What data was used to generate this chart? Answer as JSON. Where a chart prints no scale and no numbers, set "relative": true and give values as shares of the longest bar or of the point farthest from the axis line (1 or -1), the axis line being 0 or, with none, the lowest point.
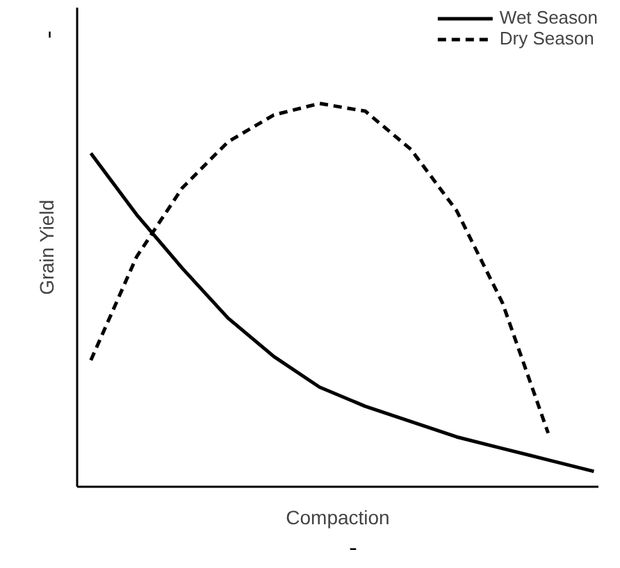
{
  "chart_data": {
    "type": "line",
    "relative": true,
    "xlabel": "Compaction",
    "ylabel": "Grain Yield",
    "categories": [
      null,
      null,
      null,
      null,
      null,
      null,
      null,
      null,
      null,
      null,
      null,
      null
    ],
    "legend": "top right",
    "grid": false,
    "marker": "none",
    "series": [
      {
        "name": "Wet Season",
        "color": "#000000",
        "line_style": "solid",
        "values": [
          0.87,
          0.71,
          0.57,
          0.44,
          0.34,
          0.26,
          0.21,
          0.17,
          0.13,
          0.1,
          0.07,
          0.04
        ]
      },
      {
        "name": "Dry Season",
        "color": "#000000",
        "line_style": "dashed",
        "values": [
          0.33,
          0.6,
          0.78,
          0.9,
          0.97,
          1.0,
          0.98,
          0.88,
          0.72,
          0.48,
          0.14,
          null
        ]
      }
    ]
  }
}
